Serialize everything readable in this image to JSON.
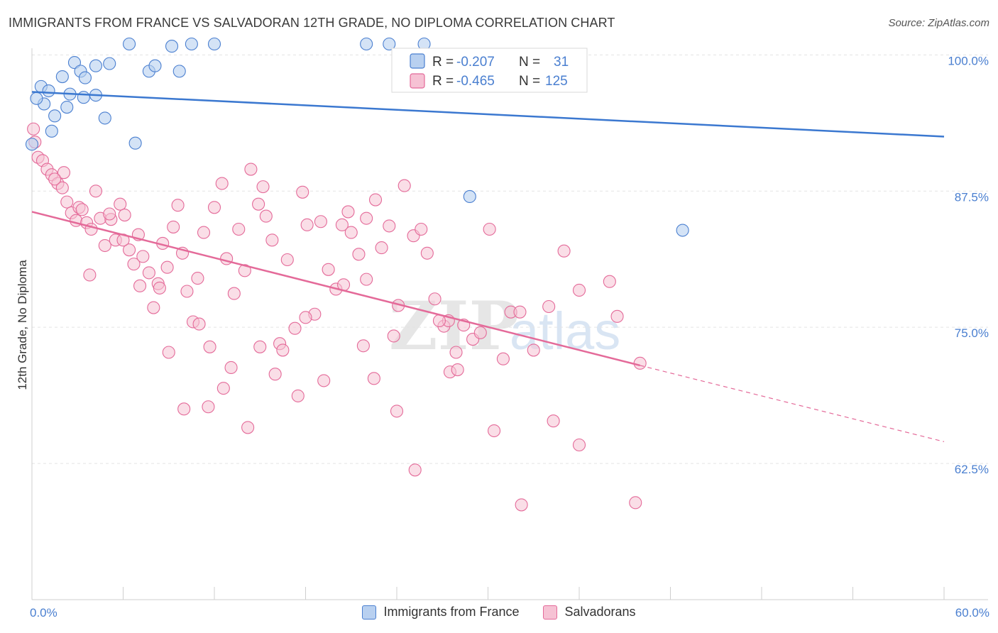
{
  "title": "IMMIGRANTS FROM FRANCE VS SALVADORAN 12TH GRADE, NO DIPLOMA CORRELATION CHART",
  "source": "Source: ZipAtlas.com",
  "watermark": {
    "zip": "ZIP",
    "atlas": "atlas"
  },
  "colors": {
    "blue": "#4a7fd0",
    "blue_fill": "#b8d0f0",
    "blue_line": "#3b78d0",
    "pink": "#e46a99",
    "pink_fill": "#f6c2d4",
    "pink_line": "#e46a99",
    "grid": "#e3e3e3",
    "axis": "#cfcfcf"
  },
  "legend": {
    "rows": [
      {
        "r_label": "R =",
        "r_value": "-0.207",
        "n_label": "N =",
        "n_value": "31",
        "series": "blue"
      },
      {
        "r_label": "R =",
        "r_value": "-0.465",
        "n_label": "N =",
        "n_value": "125",
        "series": "pink"
      }
    ],
    "bottom": [
      {
        "label": "Immigrants from France",
        "series": "blue"
      },
      {
        "label": "Salvadorans",
        "series": "pink"
      }
    ]
  },
  "chart_data": {
    "type": "scatter",
    "title": "IMMIGRANTS FROM FRANCE VS SALVADORAN 12TH GRADE, NO DIPLOMA CORRELATION CHART",
    "xlabel": "",
    "ylabel": "12th Grade, No Diploma",
    "xlim": [
      0,
      60
    ],
    "ylim": [
      50,
      101
    ],
    "x_tick_labels": [
      {
        "value": 0,
        "label": "0.0%"
      },
      {
        "value": 60,
        "label": "60.0%"
      }
    ],
    "y_tick_labels": [
      {
        "value": 100,
        "label": "100.0%"
      },
      {
        "value": 87.5,
        "label": "87.5%"
      },
      {
        "value": 75,
        "label": "75.0%"
      },
      {
        "value": 62.5,
        "label": "62.5%"
      }
    ],
    "y_gridlines": [
      100,
      87.5,
      75,
      62.5
    ],
    "series": [
      {
        "name": "Immigrants from France",
        "color": "blue",
        "trend": {
          "x0": 0,
          "y0": 96.6,
          "x1": 60,
          "y1": 92.5
        },
        "points": [
          [
            0.6,
            97.1
          ],
          [
            0.8,
            95.5
          ],
          [
            1.1,
            96.7
          ],
          [
            1.3,
            93.0
          ],
          [
            1.5,
            94.4
          ],
          [
            2.0,
            98.0
          ],
          [
            2.3,
            95.2
          ],
          [
            2.5,
            96.4
          ],
          [
            2.8,
            99.3
          ],
          [
            3.2,
            98.5
          ],
          [
            3.4,
            96.1
          ],
          [
            3.5,
            97.9
          ],
          [
            4.2,
            99.0
          ],
          [
            4.2,
            96.3
          ],
          [
            4.8,
            94.2
          ],
          [
            5.1,
            99.2
          ],
          [
            6.4,
            101.0
          ],
          [
            6.8,
            91.9
          ],
          [
            7.7,
            98.5
          ],
          [
            8.1,
            99.0
          ],
          [
            9.2,
            100.8
          ],
          [
            9.7,
            98.5
          ],
          [
            10.5,
            101.0
          ],
          [
            12.0,
            101.0
          ],
          [
            22.0,
            101.0
          ],
          [
            23.5,
            101.0
          ],
          [
            25.8,
            101.0
          ],
          [
            0.3,
            96.0
          ],
          [
            0.0,
            91.8
          ],
          [
            28.8,
            87.0
          ],
          [
            42.8,
            83.9
          ]
        ]
      },
      {
        "name": "Salvadorans",
        "color": "pink",
        "trend": {
          "x0": 0,
          "y0": 85.6,
          "x1": 40,
          "y1": 71.5
        },
        "trend_dashed": {
          "x0": 40,
          "y0": 71.5,
          "x1": 60,
          "y1": 64.5
        },
        "points": [
          [
            0.1,
            93.2
          ],
          [
            0.2,
            92.0
          ],
          [
            0.4,
            90.6
          ],
          [
            0.7,
            90.3
          ],
          [
            1.0,
            89.5
          ],
          [
            1.3,
            89.0
          ],
          [
            1.7,
            88.2
          ],
          [
            2.0,
            87.8
          ],
          [
            2.3,
            86.5
          ],
          [
            2.6,
            85.5
          ],
          [
            2.9,
            84.8
          ],
          [
            3.1,
            86.0
          ],
          [
            3.3,
            85.8
          ],
          [
            3.6,
            84.6
          ],
          [
            3.9,
            84.0
          ],
          [
            4.2,
            87.5
          ],
          [
            4.5,
            85.0
          ],
          [
            4.8,
            82.5
          ],
          [
            5.2,
            84.9
          ],
          [
            5.5,
            83.0
          ],
          [
            5.8,
            86.3
          ],
          [
            6.1,
            85.3
          ],
          [
            6.4,
            82.1
          ],
          [
            6.7,
            80.8
          ],
          [
            7.0,
            83.5
          ],
          [
            7.3,
            81.5
          ],
          [
            7.7,
            80.0
          ],
          [
            8.0,
            76.8
          ],
          [
            8.3,
            79.0
          ],
          [
            8.6,
            82.7
          ],
          [
            8.9,
            80.5
          ],
          [
            9.3,
            84.2
          ],
          [
            9.6,
            86.2
          ],
          [
            9.9,
            81.8
          ],
          [
            10.2,
            78.3
          ],
          [
            10.6,
            75.5
          ],
          [
            10.9,
            79.5
          ],
          [
            11.3,
            83.7
          ],
          [
            11.7,
            73.2
          ],
          [
            12.0,
            86.0
          ],
          [
            12.5,
            88.2
          ],
          [
            12.8,
            81.3
          ],
          [
            13.3,
            78.1
          ],
          [
            13.6,
            84.0
          ],
          [
            14.0,
            80.2
          ],
          [
            14.4,
            89.5
          ],
          [
            14.9,
            86.3
          ],
          [
            15.4,
            85.2
          ],
          [
            15.8,
            83.0
          ],
          [
            16.3,
            73.5
          ],
          [
            16.8,
            81.2
          ],
          [
            17.3,
            74.9
          ],
          [
            17.8,
            87.4
          ],
          [
            18.1,
            84.4
          ],
          [
            18.6,
            76.2
          ],
          [
            19.0,
            84.7
          ],
          [
            19.5,
            80.3
          ],
          [
            20.0,
            78.5
          ],
          [
            20.4,
            84.4
          ],
          [
            21.0,
            83.7
          ],
          [
            21.5,
            81.7
          ],
          [
            22.0,
            79.4
          ],
          [
            22.6,
            86.7
          ],
          [
            23.0,
            82.3
          ],
          [
            23.5,
            84.3
          ],
          [
            24.1,
            77.0
          ],
          [
            24.5,
            88.0
          ],
          [
            25.1,
            83.4
          ],
          [
            25.6,
            84.0
          ],
          [
            26.0,
            81.8
          ],
          [
            26.5,
            77.6
          ],
          [
            27.1,
            75.1
          ],
          [
            27.4,
            75.6
          ],
          [
            27.9,
            72.7
          ],
          [
            28.4,
            75.2
          ],
          [
            29.0,
            73.9
          ],
          [
            30.1,
            84.0
          ],
          [
            31.0,
            72.1
          ],
          [
            31.5,
            76.4
          ],
          [
            32.1,
            76.4
          ],
          [
            33.0,
            72.9
          ],
          [
            34.0,
            76.9
          ],
          [
            35.0,
            82.0
          ],
          [
            36.0,
            78.4
          ],
          [
            38.0,
            79.2
          ],
          [
            38.5,
            76.0
          ],
          [
            40.0,
            71.7
          ],
          [
            10.0,
            67.5
          ],
          [
            11.6,
            67.7
          ],
          [
            12.6,
            69.4
          ],
          [
            14.2,
            65.8
          ],
          [
            16.5,
            72.9
          ],
          [
            17.5,
            68.7
          ],
          [
            20.5,
            78.9
          ],
          [
            22.5,
            70.3
          ],
          [
            24.0,
            67.3
          ],
          [
            25.2,
            61.9
          ],
          [
            27.5,
            70.9
          ],
          [
            28.0,
            71.1
          ],
          [
            30.4,
            65.5
          ],
          [
            32.2,
            58.7
          ],
          [
            34.3,
            66.4
          ],
          [
            36.0,
            64.2
          ],
          [
            39.7,
            58.9
          ],
          [
            3.8,
            79.8
          ],
          [
            6.0,
            83.0
          ],
          [
            7.1,
            78.8
          ],
          [
            8.4,
            78.6
          ],
          [
            9.0,
            72.7
          ],
          [
            11.0,
            75.3
          ],
          [
            13.1,
            71.3
          ],
          [
            15.0,
            73.2
          ],
          [
            16.0,
            70.7
          ],
          [
            18.0,
            75.9
          ],
          [
            19.2,
            70.1
          ],
          [
            21.8,
            73.3
          ],
          [
            23.8,
            74.2
          ],
          [
            26.8,
            75.6
          ],
          [
            15.2,
            87.9
          ],
          [
            20.8,
            85.6
          ],
          [
            22.0,
            85.0
          ],
          [
            5.1,
            85.4
          ],
          [
            2.1,
            89.2
          ],
          [
            1.5,
            88.6
          ],
          [
            29.5,
            74.5
          ]
        ]
      }
    ]
  }
}
